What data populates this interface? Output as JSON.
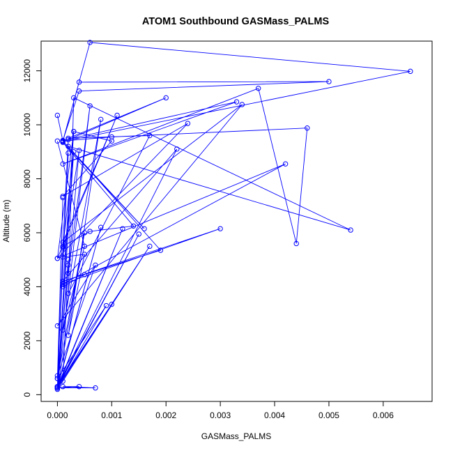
{
  "chart_data": {
    "type": "line",
    "title": "ATOM1 Southbound GASMass_PALMS",
    "xlabel": "GASMass_PALMS",
    "ylabel": "Altitude (m)",
    "xlim": [
      -0.0003,
      0.0069
    ],
    "ylim": [
      -250,
      13100
    ],
    "xticks": [
      0,
      0.001,
      0.002,
      0.003,
      0.004,
      0.005,
      0.006
    ],
    "xtick_labels": [
      "0.000",
      "0.001",
      "0.002",
      "0.003",
      "0.004",
      "0.005",
      "0.006"
    ],
    "yticks": [
      0,
      2000,
      4000,
      6000,
      8000,
      10000,
      12000
    ],
    "ytick_labels": [
      "0",
      "2000",
      "4000",
      "6000",
      "8000",
      "10000",
      "12000"
    ],
    "grid": false,
    "marker": "open-circle",
    "series_color": "#0000ff",
    "series": [
      {
        "x": [
          0.0,
          0.0001,
          0.0006,
          0.0065,
          0.0001,
          0.0004,
          0.005,
          0.0004,
          0.0001,
          0.0033,
          0.0001,
          0.0037,
          0.0044,
          0.0046,
          0.001,
          0.0001,
          0.0016,
          0.0001,
          0.0014,
          0.0006,
          0.0001,
          0.0002,
          0.002,
          0.0002,
          0.0017,
          0.0002,
          0.0003,
          0.0054,
          0.0002,
          0.0019,
          0.0001,
          0.003,
          0.0001,
          0.0042,
          0.0,
          0.0003,
          0.001,
          0.0001,
          0.0024,
          0.0,
          0.0011,
          0.0001,
          0.0034,
          0.0,
          0.0007,
          0.0,
          0.0002,
          0.0,
          0.0001,
          0.0,
          0.0012,
          0.0,
          0.0015,
          0.0,
          0.0008,
          0.0,
          0.0002,
          0.0,
          0.0007,
          0.0001,
          0.0004,
          0.0,
          0.0005,
          0.0,
          0.0009,
          0.0,
          0.001,
          0.0001,
          0.0002,
          0.0,
          0.0001,
          0.0003,
          0.0,
          0.0017,
          0.0,
          0.0022,
          0.0001,
          0.0005,
          0.0001,
          0.0003,
          0.0,
          0.0006,
          0.0002,
          0.0004,
          0.0001,
          0.0005,
          0.0002,
          0.0008,
          0.0001,
          0.0005,
          0.0
        ],
        "y": [
          10350,
          9400,
          13050,
          11980,
          9380,
          11580,
          11600,
          11250,
          9420,
          10850,
          8550,
          11350,
          5600,
          9880,
          9550,
          9400,
          6150,
          9350,
          6250,
          6050,
          5500,
          9450,
          11000,
          9500,
          9600,
          3750,
          11000,
          6100,
          9200,
          5350,
          4200,
          6150,
          4100,
          8550,
          5050,
          9750,
          9400,
          7350,
          10050,
          5050,
          10350,
          5650,
          10750,
          2550,
          4800,
          700,
          8950,
          600,
          7300,
          300,
          6150,
          250,
          5950,
          300,
          6200,
          250,
          4800,
          250,
          250,
          300,
          300,
          250,
          6000,
          600,
          3300,
          250,
          3350,
          500,
          5000,
          250,
          5450,
          9000,
          200,
          5500,
          300,
          9100,
          4200,
          4450,
          4000,
          9750,
          300,
          10700,
          4500,
          9050,
          5100,
          5200,
          2200,
          10200,
          2400,
          5500,
          9400
        ]
      }
    ]
  }
}
